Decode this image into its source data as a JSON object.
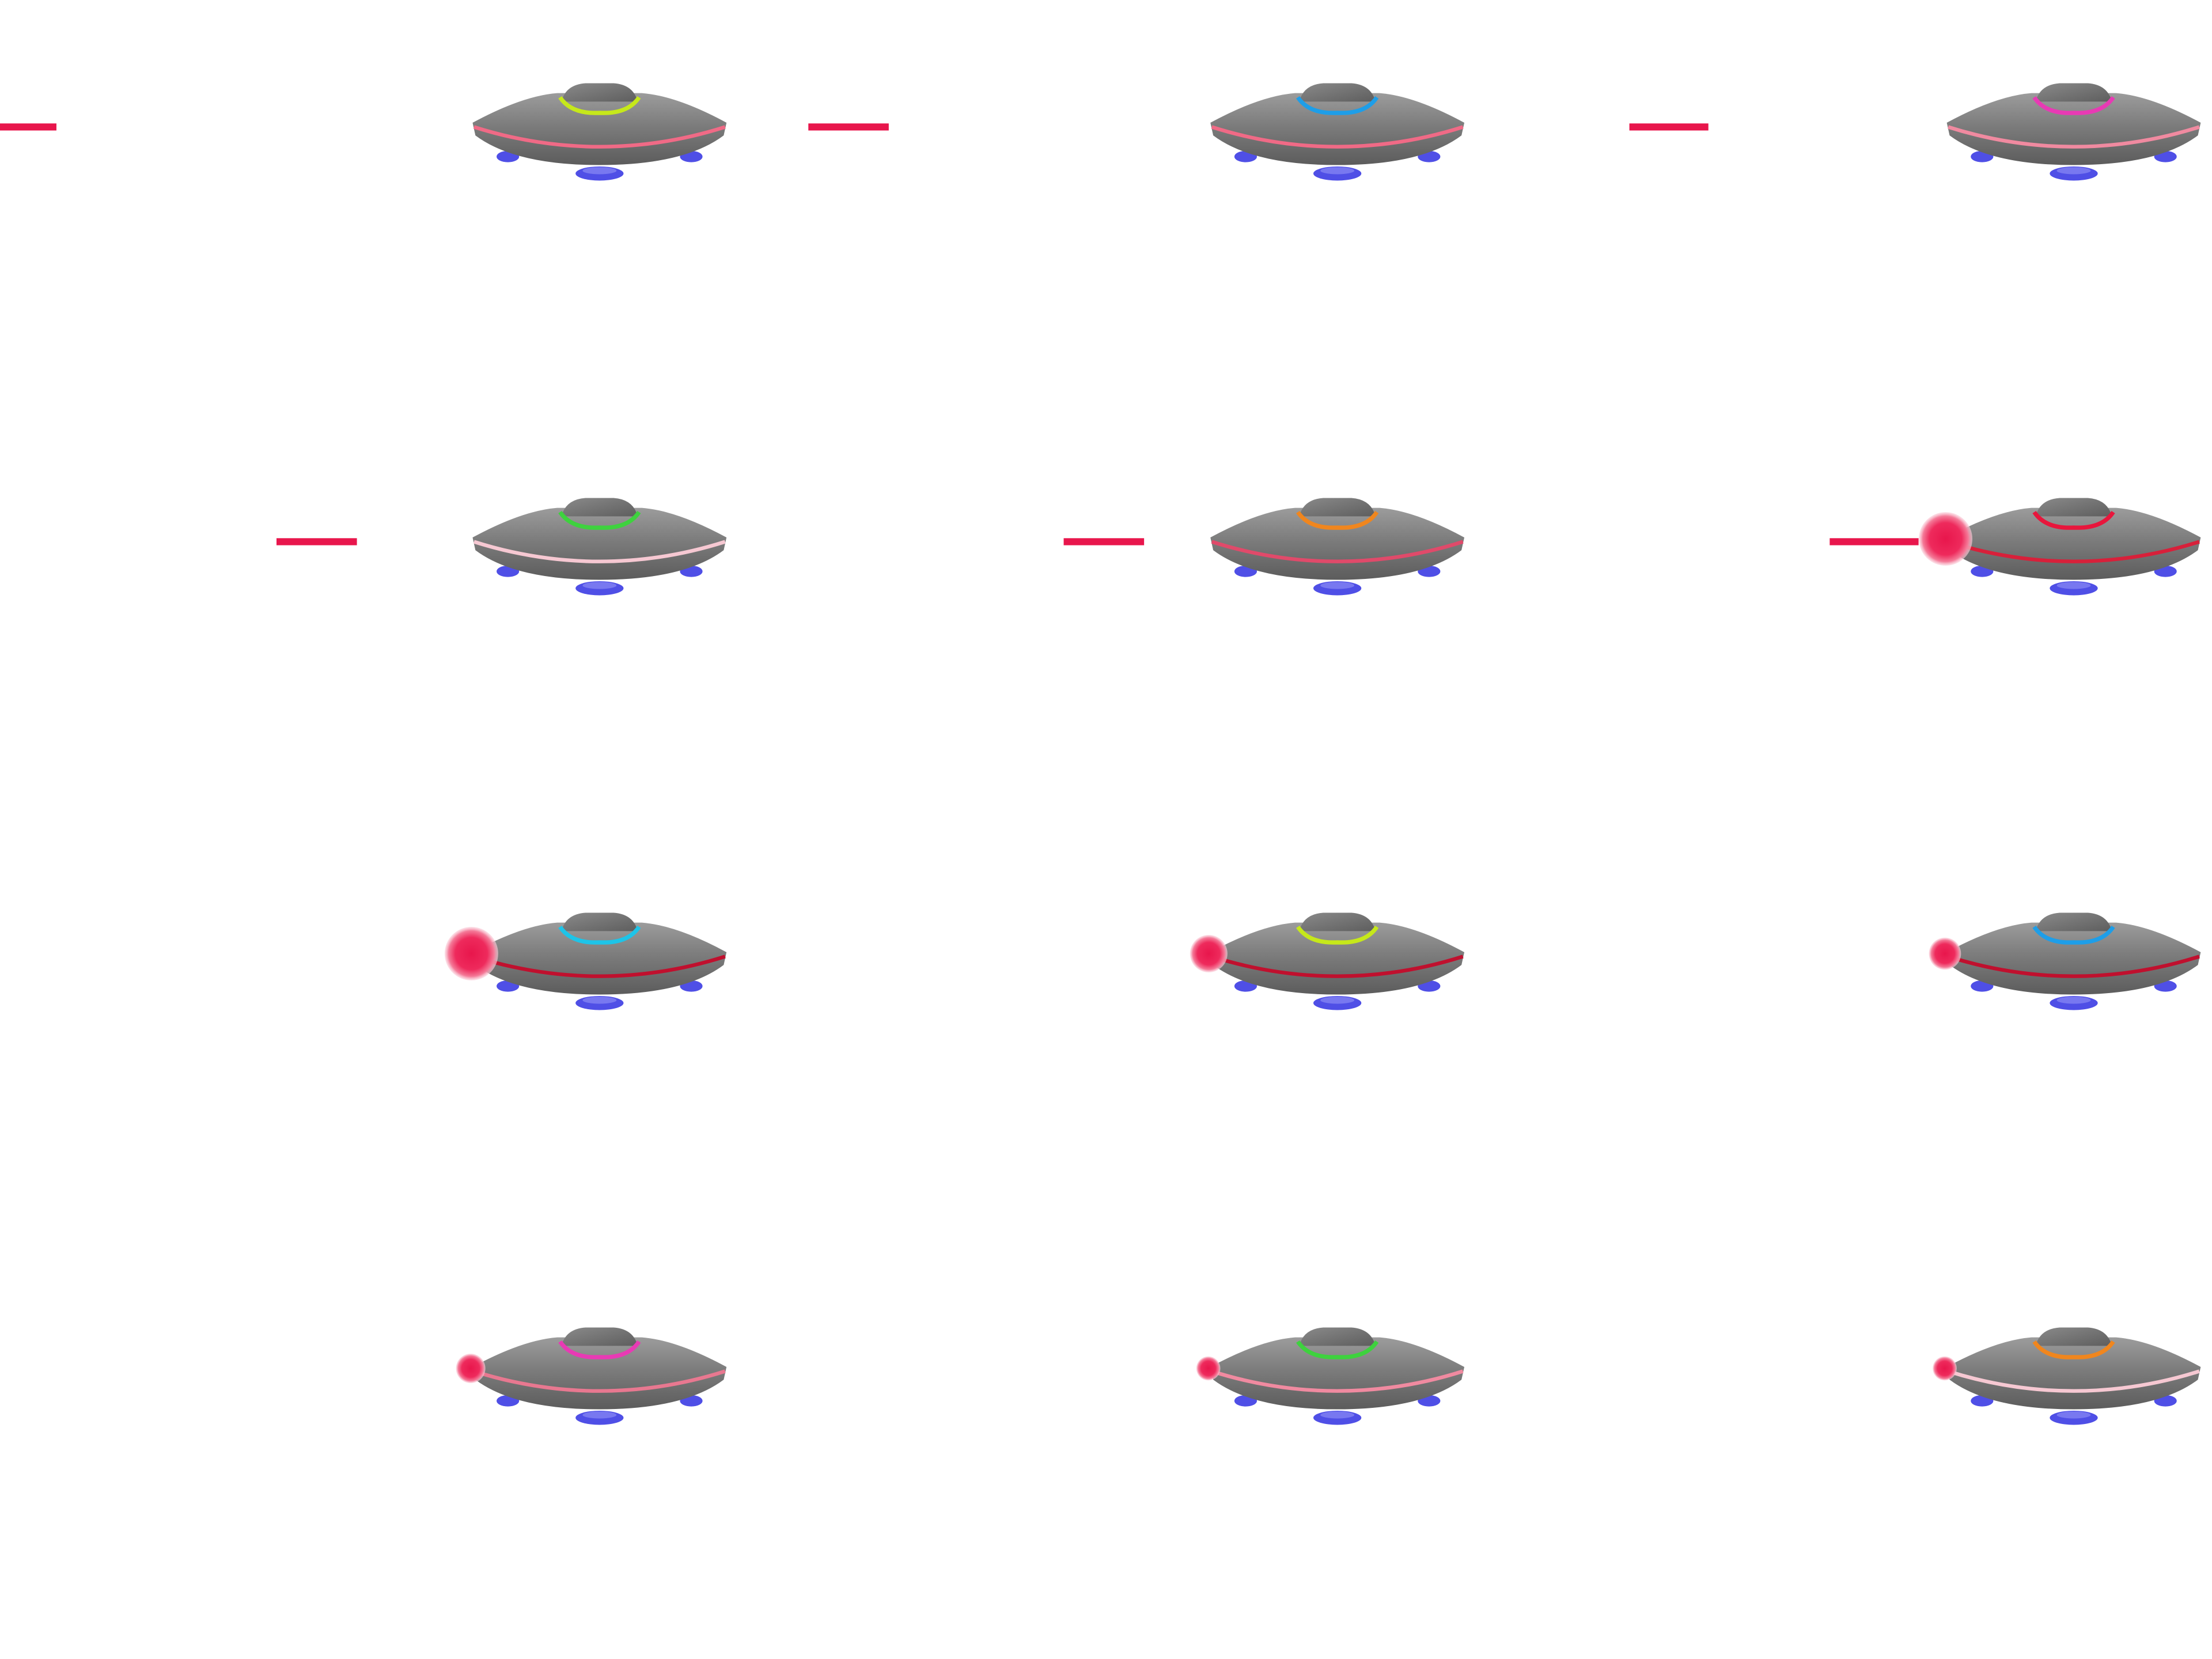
{
  "sprite_sheet": {
    "grid": {
      "columns": 3,
      "rows": 4
    },
    "background_color": "#ffffff",
    "palette": {
      "hull_dark": "#5a5a5a",
      "hull_mid": "#808080",
      "hull_light": "#a2a2a2",
      "dome": "#6e6e6e",
      "legs": "#4f4fe6",
      "legs_light": "#7878f0",
      "laser": "#e8164c",
      "stripe_red": "#d8203a",
      "stripe_pink": "#f08aa0",
      "stripe_pale": "#f6c8d2"
    },
    "frames": [
      {
        "dome_ring_color": "#c6e81a",
        "stripe_color": "#f06a86",
        "laser": "beam",
        "orb_level": 0
      },
      {
        "dome_ring_color": "#1e9ee8",
        "stripe_color": "#f06a86",
        "laser": "beam",
        "orb_level": 0
      },
      {
        "dome_ring_color": "#e83ab4",
        "stripe_color": "#f08aa0",
        "laser": "beam",
        "orb_level": 0
      },
      {
        "dome_ring_color": "#3ed23e",
        "stripe_color": "#f6c8d2",
        "laser": "beam",
        "orb_level": 0
      },
      {
        "dome_ring_color": "#f0861e",
        "stripe_color": "#e04a6a",
        "laser": "beam",
        "orb_level": 0
      },
      {
        "dome_ring_color": "#e8163c",
        "stripe_color": "#d8203a",
        "laser": "beam-orb",
        "orb_level": 1.0
      },
      {
        "dome_ring_color": "#1ec4e8",
        "stripe_color": "#c0102e",
        "laser": "orb",
        "orb_level": 1.0
      },
      {
        "dome_ring_color": "#c6e81a",
        "stripe_color": "#c0102e",
        "laser": "orb",
        "orb_level": 0.7
      },
      {
        "dome_ring_color": "#1e9ee8",
        "stripe_color": "#c0102e",
        "laser": "orb",
        "orb_level": 0.6
      },
      {
        "dome_ring_color": "#e83ab4",
        "stripe_color": "#e87890",
        "laser": "orb",
        "orb_level": 0.55
      },
      {
        "dome_ring_color": "#3ed23e",
        "stripe_color": "#f08aa0",
        "laser": "orb",
        "orb_level": 0.45
      },
      {
        "dome_ring_color": "#f0861e",
        "stripe_color": "#f6c8d2",
        "laser": "orb",
        "orb_level": 0.45
      }
    ]
  }
}
